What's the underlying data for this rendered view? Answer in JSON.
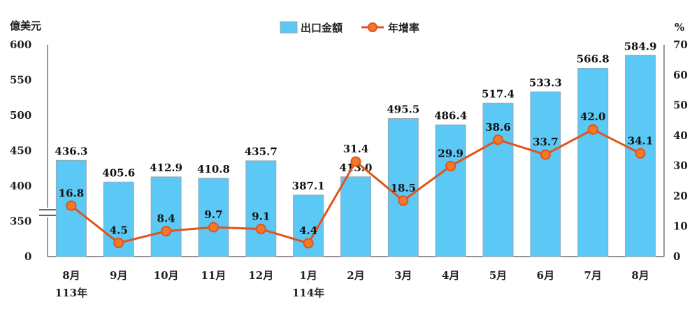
{
  "chart_data": {
    "type": "bar",
    "categories": [
      "8月",
      "9月",
      "10月",
      "11月",
      "12月",
      "1月",
      "2月",
      "3月",
      "4月",
      "5月",
      "6月",
      "7月",
      "8月"
    ],
    "year_labels": [
      "113年",
      "",
      "",
      "",
      "",
      "114年",
      "",
      "",
      "",
      "",
      "",
      "",
      ""
    ],
    "series": [
      {
        "name": "出口金額",
        "type": "bar",
        "axis": "left",
        "color": "#5bc8f5",
        "values": [
          436.3,
          405.6,
          412.9,
          410.8,
          435.7,
          387.1,
          413.0,
          495.5,
          486.4,
          517.4,
          533.3,
          566.8,
          584.9
        ],
        "labels": [
          "436.3",
          "405.6",
          "412.9",
          "410.8",
          "435.7",
          "387.1",
          "413.0",
          "495.5",
          "486.4",
          "517.4",
          "533.3",
          "566.8",
          "584.9"
        ]
      },
      {
        "name": "年增率",
        "type": "line",
        "axis": "right",
        "color": "#e0541c",
        "marker_fill": "#f07a2a",
        "values": [
          16.8,
          4.5,
          8.4,
          9.7,
          9.1,
          4.4,
          31.4,
          18.5,
          29.9,
          38.6,
          33.7,
          42.0,
          34.1
        ],
        "labels": [
          "16.8",
          "4.5",
          "8.4",
          "9.7",
          "9.1",
          "4.4",
          "31.4",
          "18.5",
          "29.9",
          "38.6",
          "33.7",
          "42.0",
          "34.1"
        ]
      }
    ],
    "left_axis": {
      "unit": "億美元",
      "ticks": [
        600,
        550,
        500,
        450,
        400,
        350
      ],
      "tick_labels": [
        "600",
        "550",
        "500",
        "450",
        "400",
        "350"
      ],
      "zero_label": "0",
      "ylim": [
        300,
        600
      ],
      "broken": true
    },
    "right_axis": {
      "unit": "%",
      "ticks": [
        70,
        60,
        50,
        40,
        30,
        20,
        10,
        0
      ],
      "tick_labels": [
        "70",
        "60",
        "50",
        "40",
        "30",
        "20",
        "10",
        "0"
      ],
      "ylim": [
        0,
        70
      ]
    },
    "grid": false,
    "legend_position": "top-center"
  }
}
